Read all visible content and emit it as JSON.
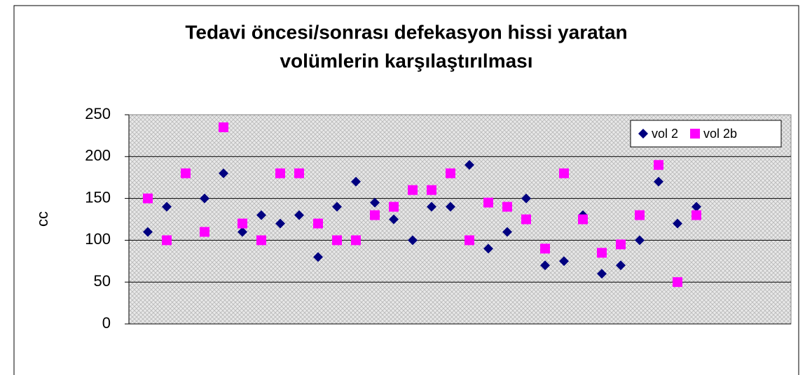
{
  "chart_data": {
    "type": "scatter",
    "title": [
      "Tedavi öncesi/sonrası defekasyon hissi yaratan",
      "volümlerin karşılaştırılması"
    ],
    "ylabel": "cc",
    "x": [
      1,
      2,
      3,
      4,
      5,
      6,
      7,
      8,
      9,
      10,
      11,
      12,
      13,
      14,
      15,
      16,
      17,
      18,
      19,
      20,
      21,
      22,
      23,
      24,
      25,
      26,
      27,
      28,
      29,
      30
    ],
    "series": [
      {
        "name": "vol 2",
        "color": "#000080",
        "marker": "diamond",
        "values": [
          110,
          140,
          180,
          150,
          180,
          110,
          130,
          120,
          130,
          80,
          140,
          170,
          145,
          125,
          100,
          140,
          140,
          190,
          90,
          110,
          150,
          70,
          75,
          130,
          60,
          70,
          100,
          170,
          120,
          140
        ]
      },
      {
        "name": "vol 2b",
        "color": "#ff00ff",
        "marker": "square",
        "values": [
          150,
          100,
          180,
          110,
          235,
          120,
          100,
          180,
          180,
          120,
          100,
          100,
          130,
          140,
          160,
          160,
          180,
          100,
          145,
          140,
          125,
          90,
          180,
          125,
          85,
          95,
          130,
          190,
          50,
          130
        ]
      }
    ],
    "xlim": [
      0,
      35
    ],
    "ylim": [
      0,
      250
    ],
    "yticks": [
      0,
      50,
      100,
      150,
      200,
      250
    ],
    "grid": true,
    "legend": "top-right"
  }
}
